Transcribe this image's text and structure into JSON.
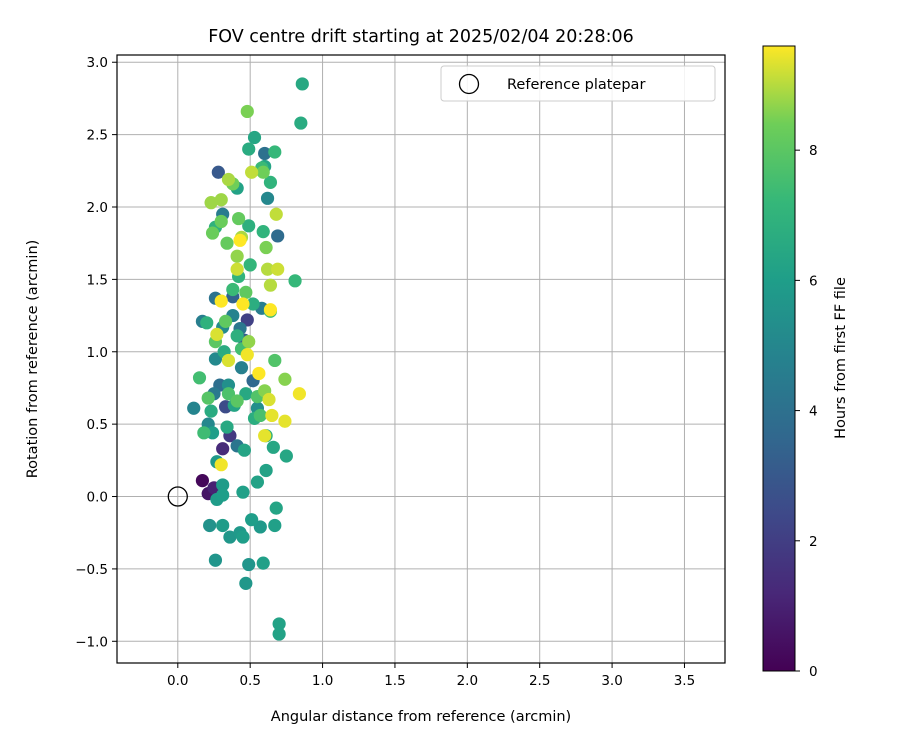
{
  "chart_data": {
    "type": "scatter",
    "title": "FOV centre drift starting at 2025/02/04 20:28:06",
    "xlabel": "Angular distance from reference (arcmin)",
    "ylabel": "Rotation from reference (arcmin)",
    "xlim": [
      -0.42,
      3.78
    ],
    "ylim": [
      -1.15,
      3.05
    ],
    "xticks": [
      "0.0",
      "0.5",
      "1.0",
      "1.5",
      "2.0",
      "2.5",
      "3.0",
      "3.5"
    ],
    "yticks": [
      "−1.0",
      "−0.5",
      "0.0",
      "0.5",
      "1.0",
      "1.5",
      "2.0",
      "2.5",
      "3.0"
    ],
    "xtick_values": [
      0,
      0.5,
      1,
      1.5,
      2,
      2.5,
      3,
      3.5
    ],
    "ytick_values": [
      -1,
      -0.5,
      0,
      0.5,
      1,
      1.5,
      2,
      2.5,
      3
    ],
    "grid": true,
    "legend": {
      "label": "Reference platepar",
      "placement": "top-right"
    },
    "reference_point": {
      "x": 0.0,
      "y": 0.0
    },
    "colorbar": {
      "label": "Hours from first FF file",
      "colormap": "viridis",
      "range": [
        0,
        9.6
      ],
      "ticks": [
        "0",
        "2",
        "4",
        "6",
        "8"
      ],
      "tick_values": [
        0,
        2,
        4,
        6,
        8
      ]
    },
    "points": [
      {
        "x": 0.17,
        "y": 0.11,
        "c": 0.2
      },
      {
        "x": 0.21,
        "y": 0.02,
        "c": 0.6
      },
      {
        "x": 0.25,
        "y": 0.06,
        "c": 1.0
      },
      {
        "x": 0.31,
        "y": 0.33,
        "c": 1.3
      },
      {
        "x": 0.36,
        "y": 0.42,
        "c": 1.8
      },
      {
        "x": 0.48,
        "y": 1.22,
        "c": 2.1
      },
      {
        "x": 0.33,
        "y": 0.62,
        "c": 2.5
      },
      {
        "x": 0.28,
        "y": 2.24,
        "c": 3.0
      },
      {
        "x": 0.46,
        "y": 1.08,
        "c": 3.2
      },
      {
        "x": 0.38,
        "y": 1.38,
        "c": 3.4
      },
      {
        "x": 0.52,
        "y": 0.8,
        "c": 3.6
      },
      {
        "x": 0.69,
        "y": 1.8,
        "c": 3.8
      },
      {
        "x": 0.29,
        "y": 0.77,
        "c": 3.9
      },
      {
        "x": 0.6,
        "y": 2.37,
        "c": 4.0
      },
      {
        "x": 0.26,
        "y": 1.37,
        "c": 4.1
      },
      {
        "x": 0.41,
        "y": 0.35,
        "c": 4.2
      },
      {
        "x": 0.43,
        "y": 1.16,
        "c": 4.3
      },
      {
        "x": 0.25,
        "y": 0.71,
        "c": 4.4
      },
      {
        "x": 0.31,
        "y": 1.95,
        "c": 4.5
      },
      {
        "x": 0.17,
        "y": 1.21,
        "c": 4.6
      },
      {
        "x": 0.58,
        "y": 1.3,
        "c": 4.6
      },
      {
        "x": 0.44,
        "y": 0.89,
        "c": 4.7
      },
      {
        "x": 0.38,
        "y": 1.25,
        "c": 4.8
      },
      {
        "x": 0.11,
        "y": 0.61,
        "c": 4.9
      },
      {
        "x": 0.21,
        "y": 0.5,
        "c": 5.0
      },
      {
        "x": 0.62,
        "y": 2.06,
        "c": 5.0
      },
      {
        "x": 0.26,
        "y": 0.95,
        "c": 5.1
      },
      {
        "x": 0.31,
        "y": 1.17,
        "c": 5.2
      },
      {
        "x": 0.55,
        "y": 0.61,
        "c": 5.3
      },
      {
        "x": 0.35,
        "y": 0.77,
        "c": 5.4
      },
      {
        "x": 0.22,
        "y": -0.2,
        "c": 5.5
      },
      {
        "x": 0.26,
        "y": -0.44,
        "c": 5.6
      },
      {
        "x": 0.49,
        "y": -0.47,
        "c": 5.6
      },
      {
        "x": 0.47,
        "y": -0.6,
        "c": 5.7
      },
      {
        "x": 0.36,
        "y": -0.28,
        "c": 5.7
      },
      {
        "x": 0.43,
        "y": -0.25,
        "c": 5.8
      },
      {
        "x": 0.57,
        "y": -0.21,
        "c": 5.8
      },
      {
        "x": 0.31,
        "y": -0.2,
        "c": 5.9
      },
      {
        "x": 0.27,
        "y": -0.02,
        "c": 5.9
      },
      {
        "x": 0.45,
        "y": -0.28,
        "c": 6.0
      },
      {
        "x": 0.51,
        "y": -0.16,
        "c": 6.0
      },
      {
        "x": 0.67,
        "y": -0.2,
        "c": 6.1
      },
      {
        "x": 0.59,
        "y": -0.46,
        "c": 6.1
      },
      {
        "x": 0.7,
        "y": -0.88,
        "c": 6.2
      },
      {
        "x": 0.7,
        "y": -0.95,
        "c": 6.2
      },
      {
        "x": 0.68,
        "y": -0.08,
        "c": 6.3
      },
      {
        "x": 0.31,
        "y": 0.08,
        "c": 5.9
      },
      {
        "x": 0.27,
        "y": 0.24,
        "c": 5.8
      },
      {
        "x": 0.31,
        "y": 0.01,
        "c": 6.0
      },
      {
        "x": 0.45,
        "y": 0.03,
        "c": 6.1
      },
      {
        "x": 0.55,
        "y": 0.1,
        "c": 6.2
      },
      {
        "x": 0.61,
        "y": 0.18,
        "c": 6.2
      },
      {
        "x": 0.46,
        "y": 0.32,
        "c": 6.3
      },
      {
        "x": 0.66,
        "y": 0.34,
        "c": 6.4
      },
      {
        "x": 0.75,
        "y": 0.28,
        "c": 6.4
      },
      {
        "x": 0.24,
        "y": 0.44,
        "c": 6.0
      },
      {
        "x": 0.39,
        "y": 0.63,
        "c": 6.3
      },
      {
        "x": 0.34,
        "y": 0.48,
        "c": 6.5
      },
      {
        "x": 0.23,
        "y": 0.59,
        "c": 6.6
      },
      {
        "x": 0.47,
        "y": 0.71,
        "c": 6.5
      },
      {
        "x": 0.53,
        "y": 0.54,
        "c": 6.7
      },
      {
        "x": 0.61,
        "y": 0.42,
        "c": 6.8
      },
      {
        "x": 0.32,
        "y": 1.0,
        "c": 6.6
      },
      {
        "x": 0.41,
        "y": 1.11,
        "c": 6.8
      },
      {
        "x": 0.2,
        "y": 1.2,
        "c": 6.9
      },
      {
        "x": 0.52,
        "y": 1.33,
        "c": 6.7
      },
      {
        "x": 0.41,
        "y": 2.13,
        "c": 6.2
      },
      {
        "x": 0.6,
        "y": 2.28,
        "c": 6.3
      },
      {
        "x": 0.53,
        "y": 2.48,
        "c": 6.4
      },
      {
        "x": 0.49,
        "y": 2.4,
        "c": 6.6
      },
      {
        "x": 0.86,
        "y": 2.85,
        "c": 6.5
      },
      {
        "x": 0.85,
        "y": 2.58,
        "c": 6.6
      },
      {
        "x": 0.64,
        "y": 2.17,
        "c": 7.0
      },
      {
        "x": 0.26,
        "y": 1.86,
        "c": 6.9
      },
      {
        "x": 0.49,
        "y": 1.87,
        "c": 6.8
      },
      {
        "x": 0.59,
        "y": 1.83,
        "c": 7.0
      },
      {
        "x": 0.81,
        "y": 1.49,
        "c": 7.2
      },
      {
        "x": 0.5,
        "y": 1.6,
        "c": 7.1
      },
      {
        "x": 0.42,
        "y": 1.52,
        "c": 7.0
      },
      {
        "x": 0.67,
        "y": 2.38,
        "c": 7.2
      },
      {
        "x": 0.58,
        "y": 2.27,
        "c": 7.3
      },
      {
        "x": 0.38,
        "y": 1.43,
        "c": 7.3
      },
      {
        "x": 0.64,
        "y": 1.28,
        "c": 7.4
      },
      {
        "x": 0.18,
        "y": 0.44,
        "c": 7.4
      },
      {
        "x": 0.15,
        "y": 0.82,
        "c": 7.5
      },
      {
        "x": 0.44,
        "y": 1.02,
        "c": 7.5
      },
      {
        "x": 0.57,
        "y": 0.56,
        "c": 7.6
      },
      {
        "x": 0.35,
        "y": 0.71,
        "c": 7.7
      },
      {
        "x": 0.55,
        "y": 0.69,
        "c": 7.8
      },
      {
        "x": 0.67,
        "y": 0.94,
        "c": 7.8
      },
      {
        "x": 0.21,
        "y": 0.68,
        "c": 7.9
      },
      {
        "x": 0.41,
        "y": 0.66,
        "c": 8.0
      },
      {
        "x": 0.26,
        "y": 1.07,
        "c": 8.0
      },
      {
        "x": 0.33,
        "y": 1.21,
        "c": 8.1
      },
      {
        "x": 0.47,
        "y": 1.41,
        "c": 8.1
      },
      {
        "x": 0.34,
        "y": 1.75,
        "c": 8.2
      },
      {
        "x": 0.42,
        "y": 1.92,
        "c": 8.2
      },
      {
        "x": 0.3,
        "y": 1.9,
        "c": 8.3
      },
      {
        "x": 0.24,
        "y": 1.82,
        "c": 8.3
      },
      {
        "x": 0.59,
        "y": 2.24,
        "c": 8.4
      },
      {
        "x": 0.38,
        "y": 2.16,
        "c": 8.4
      },
      {
        "x": 0.48,
        "y": 2.66,
        "c": 8.5
      },
      {
        "x": 0.61,
        "y": 1.72,
        "c": 8.5
      },
      {
        "x": 0.74,
        "y": 0.81,
        "c": 8.6
      },
      {
        "x": 0.6,
        "y": 0.73,
        "c": 8.6
      },
      {
        "x": 0.49,
        "y": 1.07,
        "c": 8.7
      },
      {
        "x": 0.41,
        "y": 1.66,
        "c": 8.7
      },
      {
        "x": 0.3,
        "y": 2.05,
        "c": 8.8
      },
      {
        "x": 0.23,
        "y": 2.03,
        "c": 8.8
      },
      {
        "x": 0.35,
        "y": 2.19,
        "c": 8.9
      },
      {
        "x": 0.44,
        "y": 1.79,
        "c": 8.9
      },
      {
        "x": 0.62,
        "y": 1.57,
        "c": 9.0
      },
      {
        "x": 0.64,
        "y": 1.46,
        "c": 9.0
      },
      {
        "x": 0.68,
        "y": 1.95,
        "c": 9.1
      },
      {
        "x": 0.51,
        "y": 2.24,
        "c": 9.1
      },
      {
        "x": 0.41,
        "y": 1.57,
        "c": 9.2
      },
      {
        "x": 0.69,
        "y": 1.57,
        "c": 9.2
      },
      {
        "x": 0.35,
        "y": 0.94,
        "c": 9.3
      },
      {
        "x": 0.27,
        "y": 1.12,
        "c": 9.3
      },
      {
        "x": 0.63,
        "y": 0.67,
        "c": 9.3
      },
      {
        "x": 0.65,
        "y": 0.56,
        "c": 9.4
      },
      {
        "x": 0.6,
        "y": 0.42,
        "c": 9.4
      },
      {
        "x": 0.74,
        "y": 0.52,
        "c": 9.4
      },
      {
        "x": 0.84,
        "y": 0.71,
        "c": 9.5
      },
      {
        "x": 0.3,
        "y": 0.22,
        "c": 9.5
      },
      {
        "x": 0.48,
        "y": 0.98,
        "c": 9.5
      },
      {
        "x": 0.56,
        "y": 0.85,
        "c": 9.6
      },
      {
        "x": 0.3,
        "y": 1.35,
        "c": 9.6
      },
      {
        "x": 0.45,
        "y": 1.33,
        "c": 9.6
      },
      {
        "x": 0.64,
        "y": 1.29,
        "c": 9.6
      },
      {
        "x": 0.43,
        "y": 1.77,
        "c": 9.6
      }
    ]
  }
}
